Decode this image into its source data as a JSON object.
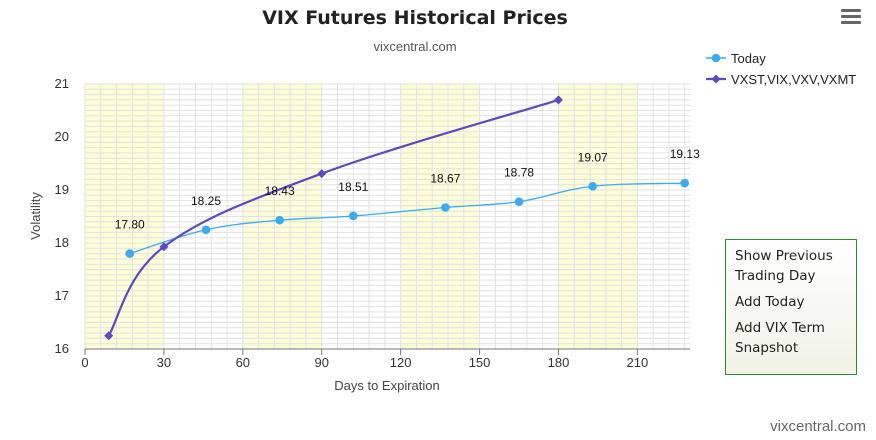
{
  "title": "VIX Futures Historical Prices",
  "subtitle": "vixcentral.com",
  "credit": "vixcentral.com",
  "icons": {
    "menu": "hamburger-menu-icon"
  },
  "colors": {
    "today": "#3aabf0",
    "vix": "#5b4bbf",
    "band": "#fdfdd8",
    "grid": "#e2e2e2",
    "menu_border": "#2e8b2e"
  },
  "menu": {
    "items": [
      "Show Previous Trading Day",
      "Add Today",
      "Add VIX Term Snapshot"
    ]
  },
  "chart_data": {
    "type": "line",
    "title": "VIX Futures Historical Prices",
    "subtitle": "vixcentral.com",
    "xlabel": "Days to Expiration",
    "ylabel": "Volatility",
    "xlim": [
      0,
      230
    ],
    "ylim": [
      16,
      21
    ],
    "xticks": [
      0,
      30,
      60,
      90,
      120,
      150,
      180,
      210
    ],
    "yticks": [
      16,
      17,
      18,
      19,
      20,
      21
    ],
    "alternate_bands": [
      [
        0,
        30
      ],
      [
        60,
        90
      ],
      [
        120,
        150
      ],
      [
        180,
        210
      ]
    ],
    "grid": true,
    "legend_position": "top-right",
    "series": [
      {
        "name": "Today",
        "marker": "circle",
        "x": [
          17,
          46,
          74,
          102,
          137,
          165,
          193,
          228
        ],
        "y": [
          17.8,
          18.25,
          18.43,
          18.51,
          18.67,
          18.78,
          19.07,
          19.13
        ],
        "labels": [
          "17.80",
          "18.25",
          "18.43",
          "18.51",
          "18.67",
          "18.78",
          "19.07",
          "19.13"
        ]
      },
      {
        "name": "VXST,VIX,VXV,VXMT",
        "marker": "diamond",
        "x": [
          9,
          30,
          90,
          180
        ],
        "y": [
          16.25,
          17.93,
          19.31,
          20.7
        ]
      }
    ]
  }
}
